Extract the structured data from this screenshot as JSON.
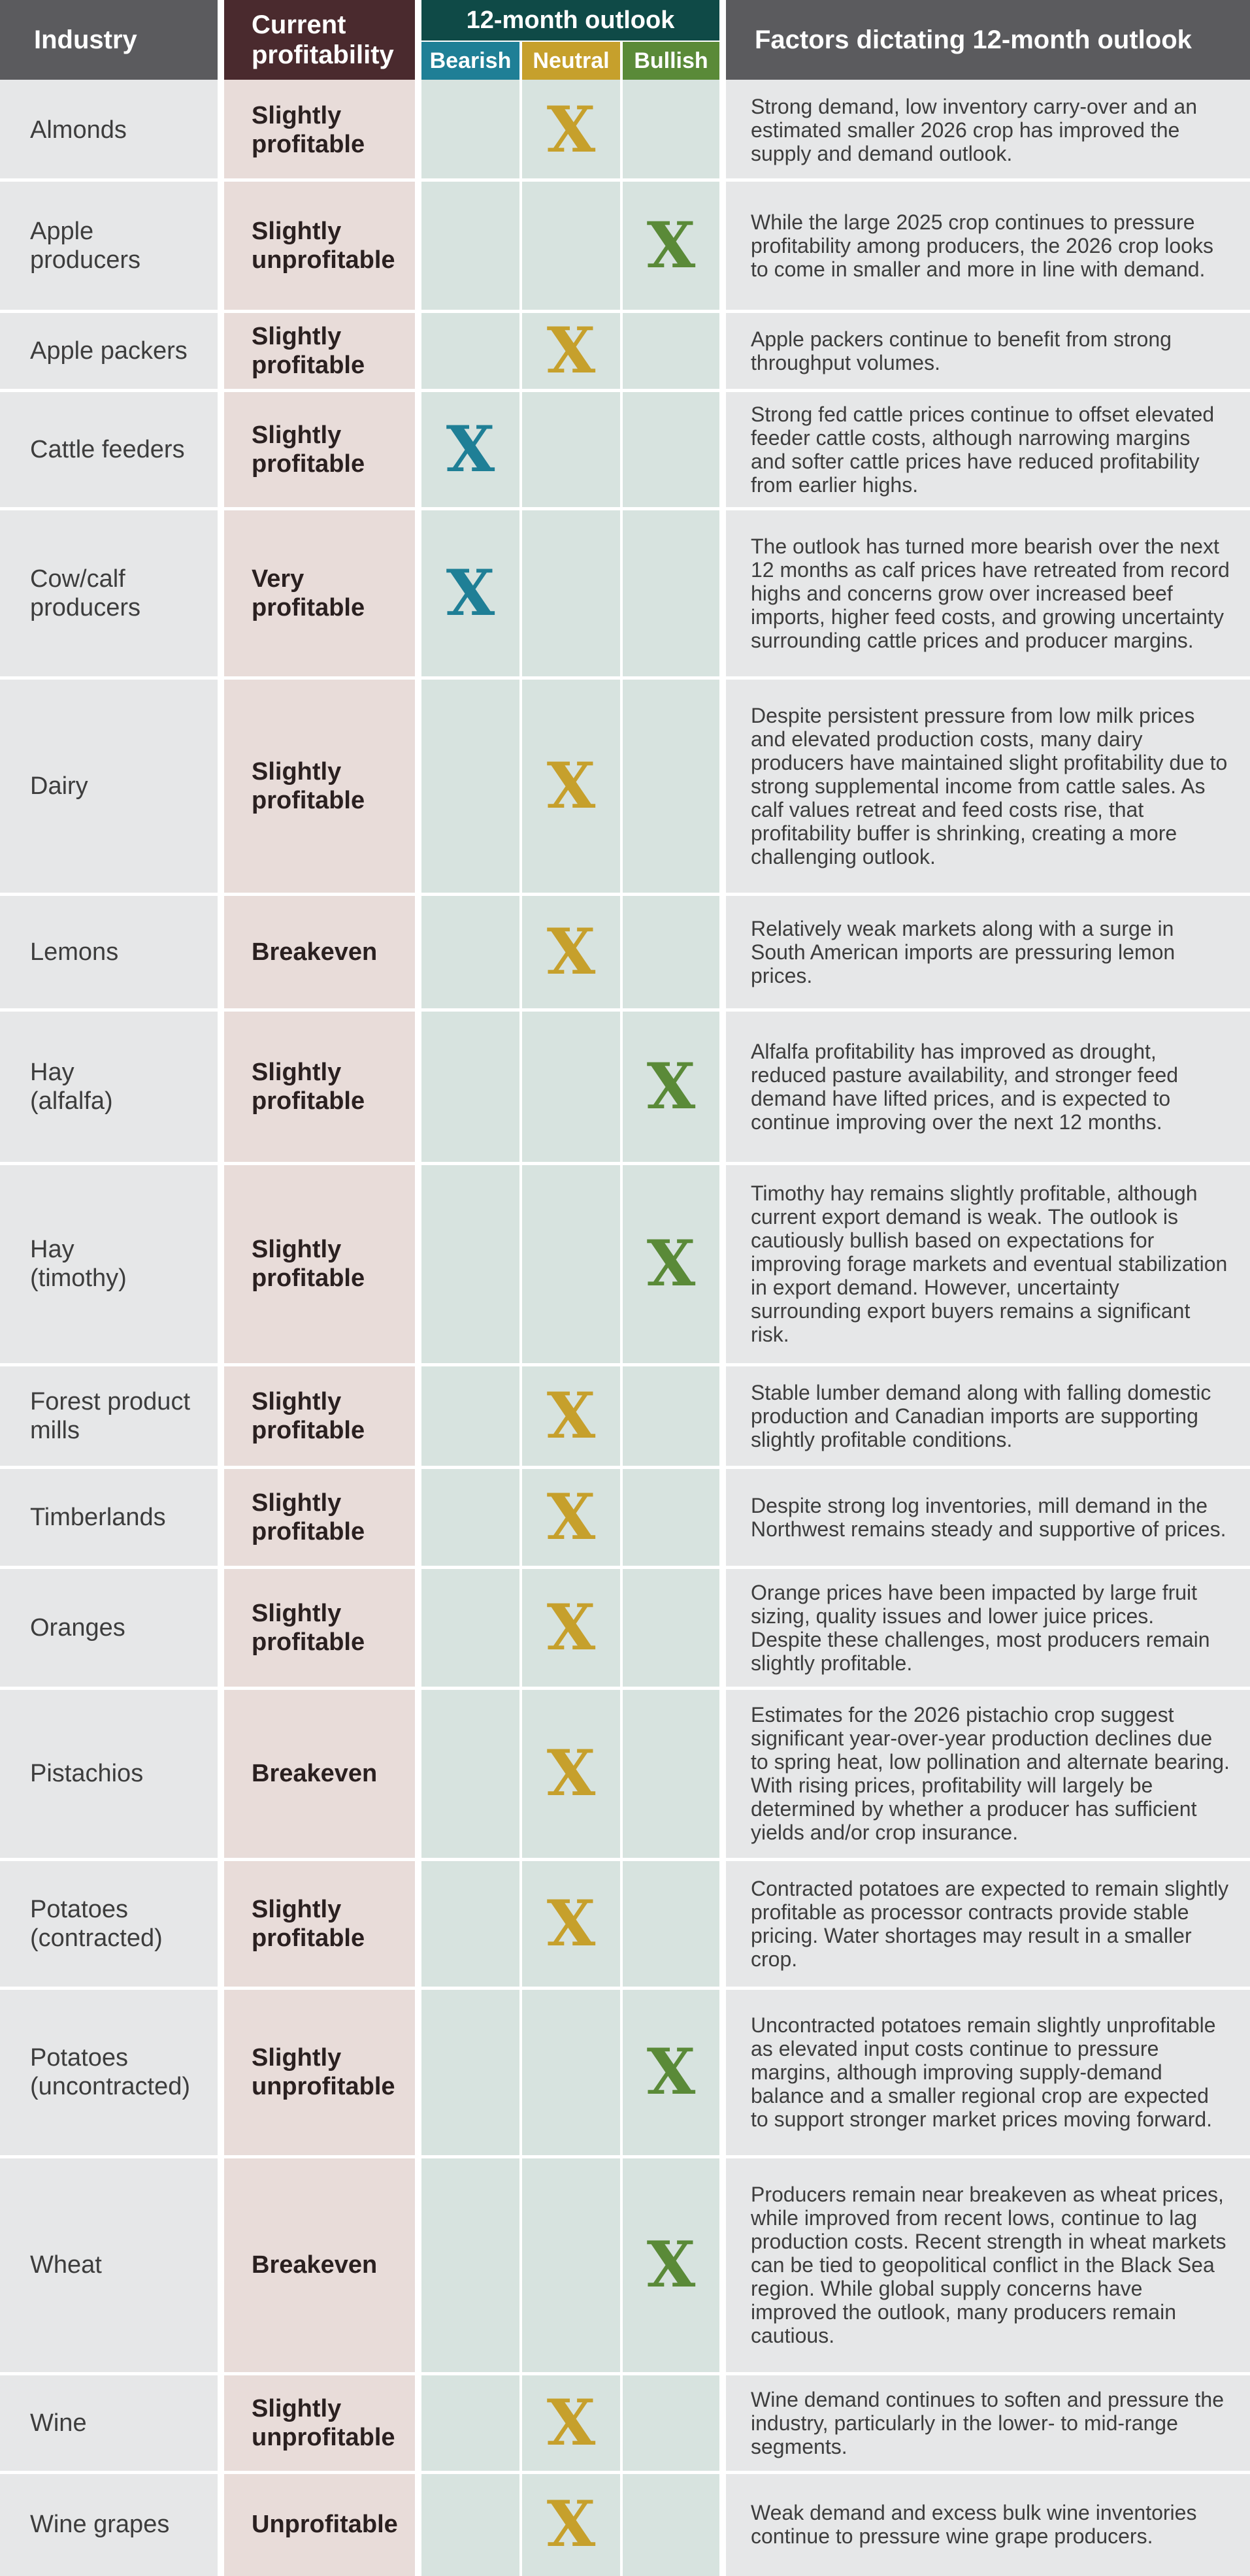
{
  "colors": {
    "header_gray": "#5b5b5e",
    "header_profit": "#4a2a2e",
    "header_outlook": "#0f4a47",
    "bearish": "#1f7f96",
    "neutral": "#c6a02c",
    "bullish": "#5a8a38",
    "row_gray": "#e6e7e8",
    "row_profit": "#e8dcd9",
    "row_outlook": "#d7e3df"
  },
  "headers": {
    "industry": "Industry",
    "profitability": "Current profitability",
    "outlook": "12-month outlook",
    "bearish": "Bearish",
    "neutral": "Neutral",
    "bullish": "Bullish",
    "factors": "Factors dictating 12-month outlook"
  },
  "mark_glyph": "X",
  "rows": [
    {
      "industry": "Almonds",
      "profitability": "Slightly profitable",
      "outlook": "neutral",
      "factors": "Strong demand, low inventory carry-over and an estimated smaller 2026 crop has improved the supply and demand outlook."
    },
    {
      "industry": "Apple\nproducers",
      "profitability": "Slightly unprofitable",
      "outlook": "bullish",
      "factors": "While the large 2025 crop continues to pressure profitability among producers, the 2026 crop looks to come in smaller and more in line with demand."
    },
    {
      "industry": "Apple packers",
      "profitability": "Slightly profitable",
      "outlook": "neutral",
      "factors": "Apple packers continue to benefit from strong throughput volumes."
    },
    {
      "industry": "Cattle feeders",
      "profitability": "Slightly profitable",
      "outlook": "bearish",
      "factors": "Strong fed cattle prices continue to offset elevated feeder cattle costs, although narrowing margins and softer cattle prices have reduced profitability from earlier highs."
    },
    {
      "industry": "Cow/calf\nproducers",
      "profitability": "Very profitable",
      "outlook": "bearish",
      "factors": "The outlook has turned more bearish over the next 12 months as calf prices have retreated from record highs and concerns grow over increased beef imports, higher feed costs, and growing uncertainty surrounding cattle prices and producer margins."
    },
    {
      "industry": "Dairy",
      "profitability": "Slightly profitable",
      "outlook": "neutral",
      "factors": "Despite persistent pressure from low milk prices and elevated production costs, many dairy producers have maintained slight profitability due to strong supplemental income from cattle sales. As calf values retreat and feed costs rise, that profitability buffer is shrinking, creating a more challenging outlook."
    },
    {
      "industry": "Lemons",
      "profitability": "Breakeven",
      "outlook": "neutral",
      "factors": "Relatively weak markets along with a surge in South American imports are pressuring lemon prices."
    },
    {
      "industry": "Hay\n(alfalfa)",
      "profitability": "Slightly profitable",
      "outlook": "bullish",
      "factors": "Alfalfa profitability has improved as drought, reduced pasture availability, and stronger feed demand have lifted prices, and is expected to continue improving over the next 12 months."
    },
    {
      "industry": "Hay\n(timothy)",
      "profitability": "Slightly profitable",
      "outlook": "bullish",
      "factors": "Timothy hay remains slightly profitable, although current export demand is weak. The outlook is cautiously bullish based on expectations for improving forage markets and eventual stabilization in export demand. However, uncertainty surrounding export buyers remains a significant risk."
    },
    {
      "industry": "Forest product\nmills",
      "profitability": "Slightly profitable",
      "outlook": "neutral",
      "factors": "Stable lumber demand along with falling domestic production and Canadian imports are supporting slightly profitable conditions."
    },
    {
      "industry": "Timberlands",
      "profitability": "Slightly profitable",
      "outlook": "neutral",
      "factors": "Despite strong log inventories, mill demand in the Northwest remains steady and supportive of prices."
    },
    {
      "industry": "Oranges",
      "profitability": "Slightly profitable",
      "outlook": "neutral",
      "factors": "Orange prices have been impacted by large fruit sizing, quality issues and lower juice prices. Despite these challenges, most producers remain slightly profitable."
    },
    {
      "industry": "Pistachios",
      "profitability": "Breakeven",
      "outlook": "neutral",
      "factors": "Estimates for the 2026 pistachio crop suggest significant year-over-year production declines due to spring heat, low pollination and alternate bearing. With rising prices, profitability will largely be determined by whether a producer has sufficient yields and/or crop insurance."
    },
    {
      "industry": "Potatoes\n(contracted)",
      "profitability": "Slightly profitable",
      "outlook": "neutral",
      "factors": "Contracted potatoes are expected to remain slightly profitable as processor contracts provide stable pricing. Water shortages may result in a smaller crop."
    },
    {
      "industry": "Potatoes\n(uncontracted)",
      "profitability": "Slightly unprofitable",
      "outlook": "bullish",
      "factors": "Uncontracted potatoes remain slightly unprofitable as elevated input costs continue to pressure margins, although improving supply-demand balance and a smaller regional crop are expected to support stronger market prices moving forward."
    },
    {
      "industry": "Wheat",
      "profitability": "Breakeven",
      "outlook": "bullish",
      "factors": "Producers remain near breakeven as wheat prices, while improved from recent lows, continue to lag production costs. Recent strength in wheat markets can be tied to geopolitical conflict in the Black Sea region. While global supply concerns have improved the outlook, many producers remain cautious."
    },
    {
      "industry": "Wine",
      "profitability": "Slightly unprofitable",
      "outlook": "neutral",
      "factors": "Wine demand continues to soften and pressure the industry, particularly in the lower- to mid-range segments."
    },
    {
      "industry": "Wine grapes",
      "profitability": "Unprofitable",
      "outlook": "neutral",
      "factors": "Weak demand and excess bulk wine inventories continue to pressure wine grape producers."
    }
  ]
}
